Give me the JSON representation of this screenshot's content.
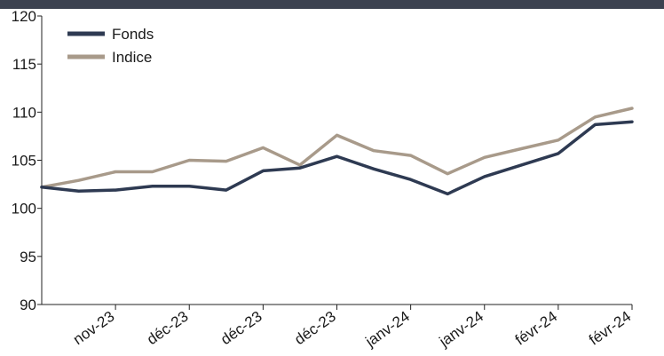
{
  "colors": {
    "banner": "#3c4250",
    "axis": "#222222",
    "fonds": "#2e3a52",
    "indice": "#a89a8a"
  },
  "chart_data": {
    "type": "line",
    "ylim": [
      90,
      120
    ],
    "yticks": [
      90,
      95,
      100,
      105,
      110,
      115,
      120
    ],
    "xlabels": [
      "nov-23",
      "déc-23",
      "déc-23",
      "déc-23",
      "janv-24",
      "janv-24",
      "févr-24",
      "févr-24"
    ],
    "legend": {
      "placement": "top-left"
    },
    "series": [
      {
        "name": "Fonds",
        "values": [
          102.2,
          101.8,
          101.9,
          102.3,
          102.3,
          101.9,
          103.9,
          104.2,
          105.4,
          104.1,
          103.0,
          101.5,
          103.3,
          104.5,
          105.7,
          108.7,
          109.0
        ]
      },
      {
        "name": "Indice",
        "values": [
          102.2,
          102.9,
          103.8,
          103.8,
          105.0,
          104.9,
          106.3,
          104.5,
          107.6,
          106.0,
          105.5,
          103.6,
          105.3,
          106.2,
          107.1,
          109.5,
          110.4
        ]
      }
    ]
  }
}
